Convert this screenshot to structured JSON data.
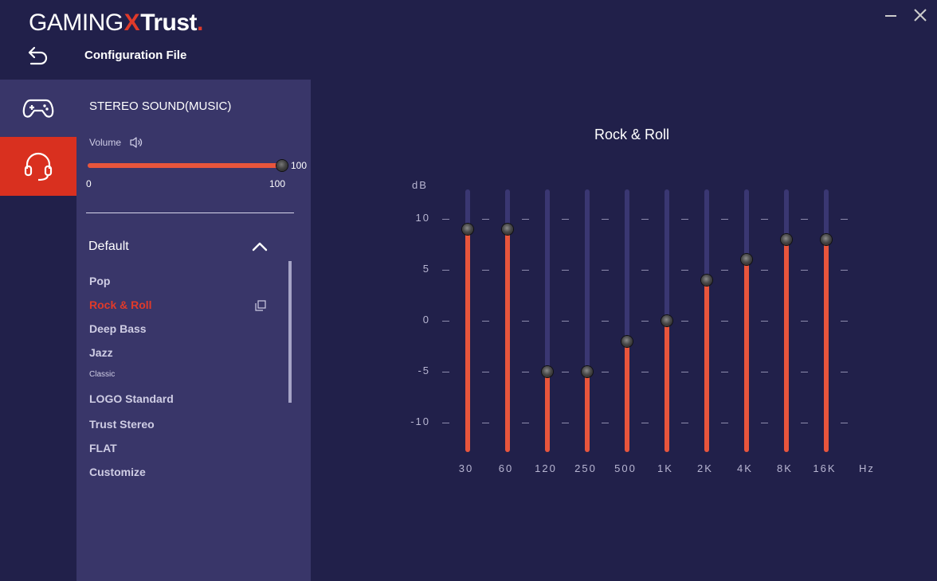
{
  "header": {
    "logo_part1": "GAMING",
    "logo_x": "X",
    "logo_part2": "Trust",
    "logo_dot": ".",
    "config_title": "Configuration File",
    "back_icon": "back-arrow-icon",
    "minimize_icon": "minimize-icon",
    "close_icon": "close-icon"
  },
  "nav": {
    "items": [
      {
        "icon": "gamepad-icon",
        "active": false
      },
      {
        "icon": "headset-icon",
        "active": true
      }
    ],
    "active_color": "#d9301f"
  },
  "panel": {
    "title": "STEREO SOUND(MUSIC)",
    "volume_label": "Volume",
    "volume_icon": "speaker-icon",
    "volume_value": 100,
    "volume_value_text": "100",
    "volume_min": "0",
    "volume_max": "100",
    "group_label": "Default",
    "group_icon": "chevron-up-icon",
    "copy_icon": "copy-icon",
    "presets": [
      {
        "label": "Pop",
        "active": false,
        "small": false
      },
      {
        "label": "Rock & Roll",
        "active": true,
        "small": false
      },
      {
        "label": "Deep Bass",
        "active": false,
        "small": false
      },
      {
        "label": "Jazz",
        "active": false,
        "small": false
      },
      {
        "label": "Classic",
        "active": false,
        "small": true
      },
      {
        "label": "LOGO Standard",
        "active": false,
        "small": false
      },
      {
        "label": "Trust Stereo",
        "active": false,
        "small": false
      },
      {
        "label": "FLAT",
        "active": false,
        "small": false
      },
      {
        "label": "Customize",
        "active": false,
        "small": false
      }
    ]
  },
  "equalizer": {
    "title": "Rock & Roll",
    "y_unit": "dB",
    "x_unit": "Hz",
    "y_ticks": [
      "10",
      "5",
      "0",
      "-5",
      "-10"
    ],
    "y_tick_values": [
      10,
      5,
      0,
      -5,
      -10
    ],
    "y_range": [
      -12.9,
      12.9
    ],
    "accent": "#e8553c",
    "track_color": "#3a3772",
    "bands": [
      {
        "label": "30",
        "gain": 9
      },
      {
        "label": "60",
        "gain": 9
      },
      {
        "label": "120",
        "gain": -5
      },
      {
        "label": "250",
        "gain": -5
      },
      {
        "label": "500",
        "gain": -2
      },
      {
        "label": "1K",
        "gain": 0
      },
      {
        "label": "2K",
        "gain": 4
      },
      {
        "label": "4K",
        "gain": 6
      },
      {
        "label": "8K",
        "gain": 8
      },
      {
        "label": "16K",
        "gain": 8
      }
    ]
  },
  "colors": {
    "background": "#21204a",
    "panel": "#393669",
    "accent": "#e03a2a"
  }
}
